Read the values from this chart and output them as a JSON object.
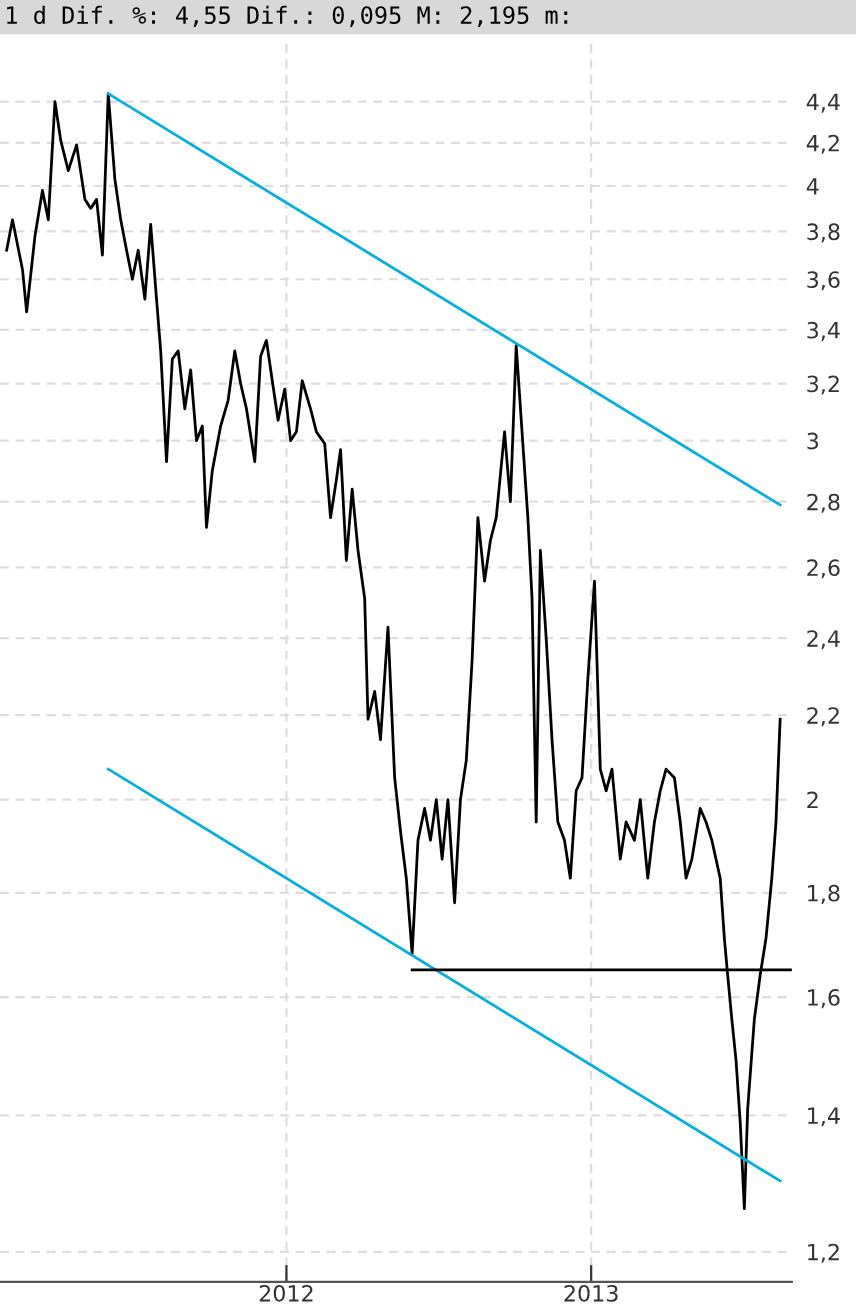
{
  "chart_data": {
    "type": "line",
    "title": "1 d Dif. %: 4,55 Dif.: 0,095 M: 2,195 m:",
    "log": true,
    "grid": true,
    "legend": false,
    "marker": "none",
    "line_style": "solid",
    "xlim": [
      "2011-01-22",
      "2013-08-30"
    ],
    "xticks": [
      {
        "value": "2012-01-01",
        "label": "2012"
      },
      {
        "value": "2013-01-01",
        "label": "2013"
      }
    ],
    "ylim": [
      1.16,
      4.72
    ],
    "yticks": [
      {
        "value": 1.2,
        "label": "1,2"
      },
      {
        "value": 1.4,
        "label": "1,4"
      },
      {
        "value": 1.6,
        "label": "1,6"
      },
      {
        "value": 1.8,
        "label": "1,8"
      },
      {
        "value": 2,
        "label": "2"
      },
      {
        "value": 2.2,
        "label": "2,2"
      },
      {
        "value": 2.4,
        "label": "2,4"
      },
      {
        "value": 2.6,
        "label": "2,6"
      },
      {
        "value": 2.8,
        "label": "2,8"
      },
      {
        "value": 3,
        "label": "3"
      },
      {
        "value": 3.2,
        "label": "3,2"
      },
      {
        "value": 3.4,
        "label": "3,4"
      },
      {
        "value": 3.6,
        "label": "3,6"
      },
      {
        "value": 3.8,
        "label": "3,8"
      },
      {
        "value": 4,
        "label": "4"
      },
      {
        "value": 4.2,
        "label": "4,2"
      },
      {
        "value": 4.4,
        "label": "4,4"
      }
    ],
    "series": [
      {
        "color": "#000000",
        "x": [
          "2011-01-30",
          "2011-02-06",
          "2011-02-18",
          "2011-02-23",
          "2011-03-05",
          "2011-03-14",
          "2011-03-21",
          "2011-03-29",
          "2011-04-05",
          "2011-04-14",
          "2011-04-24",
          "2011-05-04",
          "2011-05-11",
          "2011-05-18",
          "2011-05-25",
          "2011-06-01",
          "2011-06-09",
          "2011-06-16",
          "2011-06-23",
          "2011-06-30",
          "2011-07-07",
          "2011-07-15",
          "2011-07-22",
          "2011-07-29",
          "2011-08-03",
          "2011-08-10",
          "2011-08-17",
          "2011-08-24",
          "2011-09-01",
          "2011-09-08",
          "2011-09-15",
          "2011-09-22",
          "2011-09-27",
          "2011-10-04",
          "2011-10-14",
          "2011-10-23",
          "2011-10-31",
          "2011-11-07",
          "2011-11-14",
          "2011-11-24",
          "2011-12-01",
          "2011-12-08",
          "2011-12-15",
          "2011-12-22",
          "2011-12-30",
          "2012-01-06",
          "2012-01-13",
          "2012-01-20",
          "2012-01-30",
          "2012-02-06",
          "2012-02-16",
          "2012-02-23",
          "2012-03-01",
          "2012-03-06",
          "2012-03-13",
          "2012-03-20",
          "2012-03-27",
          "2012-04-04",
          "2012-04-08",
          "2012-04-16",
          "2012-04-23",
          "2012-05-02",
          "2012-05-10",
          "2012-05-17",
          "2012-05-24",
          "2012-05-31",
          "2012-06-07",
          "2012-06-15",
          "2012-06-22",
          "2012-06-29",
          "2012-07-06",
          "2012-07-13",
          "2012-07-21",
          "2012-07-28",
          "2012-08-04",
          "2012-08-11",
          "2012-08-18",
          "2012-08-26",
          "2012-09-02",
          "2012-09-09",
          "2012-09-19",
          "2012-09-26",
          "2012-10-03",
          "2012-10-10",
          "2012-10-17",
          "2012-10-22",
          "2012-10-27",
          "2012-11-01",
          "2012-11-08",
          "2012-11-15",
          "2012-11-22",
          "2012-11-30",
          "2012-12-07",
          "2012-12-14",
          "2012-12-21",
          "2012-12-28",
          "2013-01-05",
          "2013-01-12",
          "2013-01-19",
          "2013-01-26",
          "2013-02-05",
          "2013-02-12",
          "2013-02-22",
          "2013-03-01",
          "2013-03-10",
          "2013-03-18",
          "2013-03-25",
          "2013-04-01",
          "2013-04-11",
          "2013-04-18",
          "2013-04-25",
          "2013-05-02",
          "2013-05-12",
          "2013-05-19",
          "2013-05-26",
          "2013-06-05",
          "2013-06-10",
          "2013-06-14",
          "2013-06-19",
          "2013-06-24",
          "2013-06-29",
          "2013-07-04",
          "2013-07-08",
          "2013-07-16",
          "2013-07-23",
          "2013-07-30",
          "2013-08-06",
          "2013-08-11",
          "2013-08-16"
        ],
        "values": [
          3.72,
          3.85,
          3.64,
          3.47,
          3.78,
          3.98,
          3.85,
          4.4,
          4.21,
          4.07,
          4.19,
          3.94,
          3.9,
          3.94,
          3.7,
          4.44,
          4.03,
          3.85,
          3.72,
          3.6,
          3.72,
          3.52,
          3.83,
          3.52,
          3.32,
          2.93,
          3.29,
          3.32,
          3.11,
          3.25,
          3.0,
          3.05,
          2.72,
          2.9,
          3.05,
          3.14,
          3.32,
          3.2,
          3.11,
          2.93,
          3.3,
          3.36,
          3.21,
          3.07,
          3.18,
          3.0,
          3.03,
          3.21,
          3.11,
          3.03,
          2.99,
          2.75,
          2.87,
          2.97,
          2.62,
          2.84,
          2.65,
          2.51,
          2.19,
          2.26,
          2.14,
          2.43,
          2.05,
          1.93,
          1.83,
          1.68,
          1.91,
          1.98,
          1.91,
          2.0,
          1.87,
          2.0,
          1.78,
          2.0,
          2.09,
          2.34,
          2.75,
          2.56,
          2.68,
          2.75,
          3.03,
          2.8,
          3.34,
          3.03,
          2.75,
          2.51,
          1.95,
          2.65,
          2.4,
          2.14,
          1.95,
          1.91,
          1.83,
          2.02,
          2.05,
          2.29,
          2.56,
          2.07,
          2.02,
          2.07,
          1.87,
          1.95,
          1.91,
          2.0,
          1.83,
          1.95,
          2.02,
          2.07,
          2.05,
          1.95,
          1.83,
          1.87,
          1.98,
          1.95,
          1.91,
          1.83,
          1.71,
          1.64,
          1.56,
          1.49,
          1.39,
          1.26,
          1.41,
          1.56,
          1.64,
          1.71,
          1.83,
          1.95,
          2.19
        ]
      },
      {
        "color": "#00b0e0",
        "x": [
          "2011-06-01",
          "2013-08-16"
        ],
        "values": [
          4.44,
          2.79
        ]
      },
      {
        "color": "#00b0e0",
        "x": [
          "2011-06-01",
          "2013-08-16"
        ],
        "values": [
          2.07,
          1.3
        ]
      },
      {
        "color": "#000000",
        "x": [
          "2012-05-31",
          "2013-08-30"
        ],
        "values": [
          1.65,
          1.65
        ]
      }
    ]
  }
}
